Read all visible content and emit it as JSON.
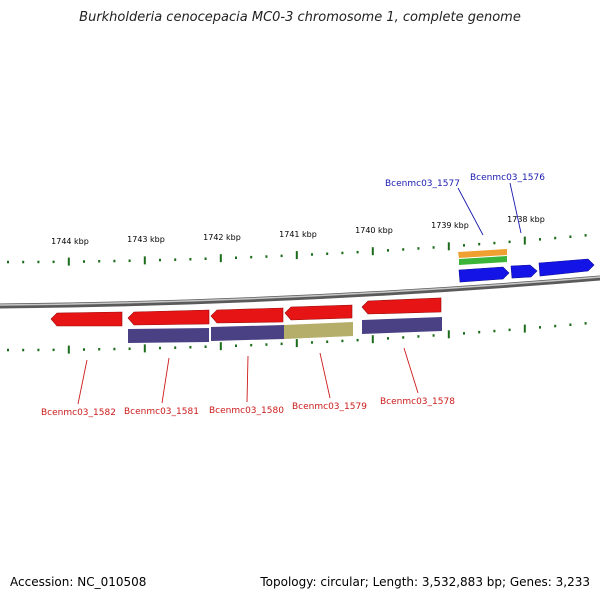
{
  "title": "Burkholderia cenocepacia MC0-3 chromosome 1, complete genome",
  "footer": {
    "accession": "Accession: NC_010508",
    "topology": "Topology: circular; Length: 3,532,883 bp; Genes: 3,233"
  },
  "colors": {
    "backbone": "#8a8a8a",
    "forward_gene": "#1414e6",
    "reverse_gene": "#e61414",
    "reverse_product": "#4a4185",
    "reverse_product_alt": "#b5ad6a",
    "forward_product_orange": "#f0a030",
    "forward_product_green": "#3ab53a",
    "tick": "#1a6b1a",
    "label_forward": "#1a1ab0",
    "label_reverse": "#cc1a1a"
  },
  "scale_labels": [
    "1744 kbp",
    "1743 kbp",
    "1742 kbp",
    "1741 kbp",
    "1740 kbp",
    "1739 kbp",
    "1738 kbp"
  ],
  "forward_labels": [
    "Bcenmc03_1577",
    "Bcenmc03_1576"
  ],
  "reverse_labels": [
    "Bcenmc03_1582",
    "Bcenmc03_1581",
    "Bcenmc03_1580",
    "Bcenmc03_1579",
    "Bcenmc03_1578"
  ]
}
